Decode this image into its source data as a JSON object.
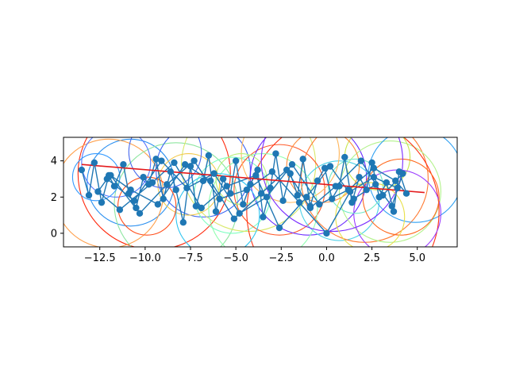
{
  "chart_data": {
    "type": "line",
    "title": "",
    "xlabel": "",
    "ylabel": "",
    "xlim": [
      -14.5,
      7.2
    ],
    "ylim": [
      -0.75,
      5.3
    ],
    "x_ticks": [
      {
        "value": -12.5,
        "label": "−12.5"
      },
      {
        "value": -10.0,
        "label": "−10.0"
      },
      {
        "value": -7.5,
        "label": "−7.5"
      },
      {
        "value": -5.0,
        "label": "−5.0"
      },
      {
        "value": -2.5,
        "label": "−2.5"
      },
      {
        "value": 0.0,
        "label": "0.0"
      },
      {
        "value": 2.5,
        "label": "2.5"
      },
      {
        "value": 5.0,
        "label": "5.0"
      }
    ],
    "y_ticks": [
      {
        "value": 0,
        "label": "0"
      },
      {
        "value": 2,
        "label": "2"
      },
      {
        "value": 4,
        "label": "4"
      }
    ],
    "grid": false,
    "trend_line": {
      "color": "#e41a1c",
      "x": [
        -13.5,
        5.4
      ],
      "y": [
        3.8,
        2.25
      ]
    },
    "walk_color": "#1f77b4",
    "circle_colormap": "rainbow",
    "circles": [
      {
        "cx": -9.5,
        "cy": 3.3,
        "r": 4.2,
        "color": "#ff2a0e"
      },
      {
        "cx": -10.8,
        "cy": 2.8,
        "r": 2.4,
        "color": "#2a8ff0"
      },
      {
        "cx": -12.0,
        "cy": 2.2,
        "r": 3.0,
        "color": "#ff9f4a"
      },
      {
        "cx": -8.3,
        "cy": 1.6,
        "r": 3.4,
        "color": "#8ee6a0"
      },
      {
        "cx": -6.8,
        "cy": 3.5,
        "r": 2.6,
        "color": "#3c66f5"
      },
      {
        "cx": -5.2,
        "cy": 2.1,
        "r": 2.1,
        "color": "#7dffc0"
      },
      {
        "cx": -4.3,
        "cy": 3.8,
        "r": 3.7,
        "color": "#d9e86b"
      },
      {
        "cx": -2.6,
        "cy": 2.4,
        "r": 2.5,
        "color": "#ff5a2a"
      },
      {
        "cx": -1.0,
        "cy": 3.1,
        "r": 3.2,
        "color": "#6a2bff"
      },
      {
        "cx": 0.7,
        "cy": 1.8,
        "r": 2.2,
        "color": "#4fd1e8"
      },
      {
        "cx": 2.1,
        "cy": 3.0,
        "r": 3.5,
        "color": "#ff7a32"
      },
      {
        "cx": 3.5,
        "cy": 2.3,
        "r": 2.8,
        "color": "#b3f28c"
      },
      {
        "cx": 4.9,
        "cy": 3.2,
        "r": 2.6,
        "color": "#2fa0f2"
      },
      {
        "cx": 0.9,
        "cy": 1.2,
        "r": 5.3,
        "color": "#ff3214"
      },
      {
        "cx": -7.6,
        "cy": 2.7,
        "r": 1.7,
        "color": "#f2c94c"
      },
      {
        "cx": -11.6,
        "cy": 3.9,
        "r": 1.9,
        "color": "#5577ff"
      },
      {
        "cx": -3.5,
        "cy": 1.4,
        "r": 3.0,
        "color": "#8fffb0"
      },
      {
        "cx": 2.8,
        "cy": 4.2,
        "r": 1.8,
        "color": "#c8e64a"
      },
      {
        "cx": -0.2,
        "cy": 3.7,
        "r": 2.0,
        "color": "#ff8c3c"
      },
      {
        "cx": 3.9,
        "cy": 1.1,
        "r": 2.4,
        "color": "#9b3cff"
      },
      {
        "cx": -6.0,
        "cy": 1.0,
        "r": 2.3,
        "color": "#2ec4f0"
      },
      {
        "cx": -9.9,
        "cy": 1.5,
        "r": 1.6,
        "color": "#ff4d1a"
      },
      {
        "cx": 1.6,
        "cy": 2.6,
        "r": 1.5,
        "color": "#6fe8c8"
      },
      {
        "cx": -2.0,
        "cy": 4.4,
        "r": 2.7,
        "color": "#ffb65a"
      },
      {
        "cx": -8.9,
        "cy": 4.5,
        "r": 2.0,
        "color": "#4466ee"
      },
      {
        "cx": 4.1,
        "cy": 2.0,
        "r": 2.1,
        "color": "#ff6a1f"
      },
      {
        "cx": -4.7,
        "cy": 3.0,
        "r": 1.4,
        "color": "#b8f07a"
      },
      {
        "cx": 0.3,
        "cy": 4.0,
        "r": 3.9,
        "color": "#7a2cff"
      },
      {
        "cx": -12.7,
        "cy": 3.1,
        "r": 1.3,
        "color": "#3399ff"
      },
      {
        "cx": 2.4,
        "cy": 0.9,
        "r": 1.9,
        "color": "#e8e04a"
      }
    ],
    "series": [
      {
        "x": [
          -13.5,
          -13.1,
          -12.8,
          -12.4,
          -12.0,
          -11.7,
          -11.2,
          -10.9,
          -10.5,
          -10.1,
          -9.8,
          -9.4,
          -9.0,
          -8.6,
          -8.3,
          -7.9,
          -7.5,
          -7.2,
          -6.8,
          -6.5,
          -6.1,
          -5.7,
          -5.3,
          -5.0,
          -4.6,
          -4.2,
          -3.8,
          -3.5,
          -3.1,
          -2.8,
          -2.4,
          -2.0,
          -1.6,
          -1.3,
          -0.9,
          -0.5,
          -0.1,
          0.3,
          0.7,
          1.0,
          1.4,
          1.8,
          2.2,
          2.5,
          2.9,
          3.3,
          3.7,
          4.0,
          4.4,
          3.8,
          2.6,
          1.2,
          -0.4,
          -1.9,
          -3.3,
          -4.8,
          -6.2,
          -7.7,
          -9.1,
          -10.6,
          -12.1,
          -12.6,
          -11.4,
          -9.6,
          -8.4,
          -6.9,
          -5.5,
          -3.9,
          -2.6,
          -1.1,
          0.2,
          1.5,
          2.7,
          3.6,
          4.2,
          3.1,
          1.9,
          0.5,
          -0.9,
          -2.2,
          -3.6,
          -5.1,
          -6.4,
          -7.8,
          -9.3,
          -10.8,
          -11.9,
          -10.3,
          -8.8,
          -7.3,
          -5.9,
          -4.4,
          -3.0,
          -1.5,
          0.0,
          1.3,
          2.6,
          3.9
        ],
        "y": [
          3.5,
          2.1,
          3.9,
          1.7,
          3.2,
          2.6,
          3.8,
          2.2,
          1.4,
          3.1,
          2.7,
          4.1,
          1.9,
          3.4,
          2.4,
          0.6,
          3.7,
          1.5,
          2.9,
          4.3,
          1.2,
          3.0,
          2.2,
          4.0,
          1.6,
          2.7,
          3.5,
          0.9,
          2.5,
          4.4,
          1.8,
          3.3,
          2.1,
          4.1,
          1.5,
          2.9,
          3.6,
          1.9,
          2.6,
          4.2,
          1.7,
          3.1,
          2.4,
          3.9,
          2.0,
          2.8,
          1.2,
          3.4,
          2.2,
          2.9,
          3.6,
          2.4,
          1.6,
          3.8,
          2.0,
          1.1,
          3.3,
          2.5,
          4.0,
          1.8,
          3.0,
          2.3,
          1.3,
          2.8,
          3.9,
          1.4,
          2.6,
          3.2,
          0.3,
          2.0,
          3.7,
          1.9,
          2.7,
          1.5,
          3.3,
          2.1,
          4.0,
          2.6,
          1.4,
          3.5,
          2.2,
          0.8,
          2.9,
          3.8,
          1.6,
          2.4,
          3.2,
          1.1,
          2.7,
          4.0,
          1.9,
          2.4,
          3.4,
          1.7,
          0.0,
          2.3,
          3.1,
          2.5
        ]
      }
    ]
  }
}
